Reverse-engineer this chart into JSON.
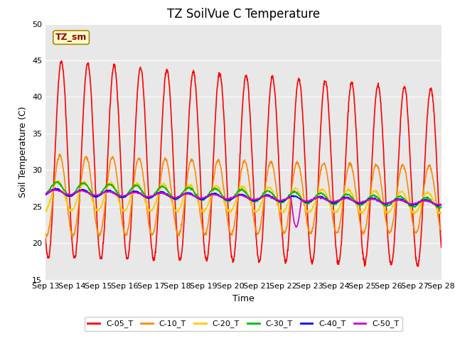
{
  "title": "TZ SoilVue C Temperature",
  "xlabel": "Time",
  "ylabel": "Soil Temperature (C)",
  "ylim": [
    15,
    50
  ],
  "yticks": [
    15,
    20,
    25,
    30,
    35,
    40,
    45,
    50
  ],
  "x_tick_labels": [
    "Sep 13",
    "Sep 14",
    "Sep 15",
    "Sep 16",
    "Sep 17",
    "Sep 18",
    "Sep 19",
    "Sep 20",
    "Sep 21",
    "Sep 22",
    "Sep 23",
    "Sep 24",
    "Sep 25",
    "Sep 26",
    "Sep 27",
    "Sep 28"
  ],
  "legend_box_label": "TZ_sm",
  "legend_box_bg": "#ffffcc",
  "legend_box_border": "#aa8800",
  "fig_bg": "#ffffff",
  "plot_bg": "#e8e8e8",
  "series": [
    {
      "label": "C-05_T",
      "color": "#ff0000"
    },
    {
      "label": "C-10_T",
      "color": "#ff8800"
    },
    {
      "label": "C-20_T",
      "color": "#ffcc00"
    },
    {
      "label": "C-30_T",
      "color": "#00bb00"
    },
    {
      "label": "C-40_T",
      "color": "#0000ff"
    },
    {
      "label": "C-50_T",
      "color": "#cc00cc"
    }
  ],
  "title_fontsize": 12,
  "axis_label_fontsize": 9,
  "tick_fontsize": 8,
  "legend_fontsize": 8,
  "linewidth": 1.2,
  "grid_color": "#ffffff",
  "grid_linewidth": 0.8,
  "n_days": 15,
  "pts_per_day": 96,
  "phases": [
    0.0,
    0.06,
    0.12,
    0.17,
    0.2,
    0.22
  ],
  "amp_start": [
    13.5,
    5.5,
    2.0,
    0.9,
    0.45,
    0.3
  ],
  "amp_end": [
    12.0,
    4.5,
    1.4,
    0.65,
    0.35,
    0.25
  ],
  "mean_start": [
    31.5,
    26.5,
    26.5,
    27.5,
    27.0,
    27.0
  ],
  "mean_end": [
    29.0,
    26.0,
    25.5,
    25.5,
    25.5,
    25.5
  ],
  "noises": [
    0.15,
    0.1,
    0.08,
    0.06,
    0.04,
    0.04
  ]
}
